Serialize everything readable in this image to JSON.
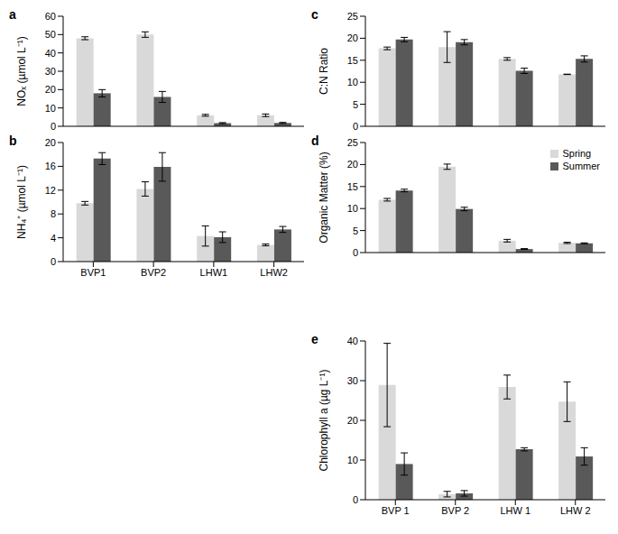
{
  "chart_data": [
    {
      "type": "bar",
      "title": "a",
      "y_label": "NOₓ (µmol L⁻¹)",
      "categories": [
        null,
        null,
        null,
        null
      ],
      "tick_labels": "y",
      "series": [
        {
          "name": "Spring",
          "color": "#d9d9d9",
          "values": [
            48,
            50,
            6,
            6
          ],
          "errors": [
            0.8,
            1.5,
            0.5,
            0.7
          ]
        },
        {
          "name": "Summer",
          "color": "#595959",
          "values": [
            18,
            16,
            1.7,
            1.8
          ],
          "errors": [
            2,
            3,
            0.3,
            0.3
          ]
        }
      ],
      "ylim": [
        0,
        60
      ],
      "yticks": [
        0,
        10,
        20,
        30,
        40,
        50,
        60
      ]
    },
    {
      "type": "bar",
      "title": "b",
      "y_label": "NH₄⁺ (µmol L⁻¹)",
      "categories": [
        "BVP1",
        "BVP2",
        "LHW1",
        "LHW2"
      ],
      "series": [
        {
          "name": "Spring",
          "color": "#d9d9d9",
          "values": [
            9.8,
            12.2,
            4.3,
            2.8
          ],
          "errors": [
            0.3,
            1.2,
            1.7,
            0.15
          ]
        },
        {
          "name": "Summer",
          "color": "#595959",
          "values": [
            17.3,
            15.9,
            4.1,
            5.4
          ],
          "errors": [
            1,
            2.4,
            0.9,
            0.5
          ]
        }
      ],
      "ylim": [
        0,
        20
      ],
      "yticks": [
        0,
        4,
        8,
        12,
        16,
        20
      ]
    },
    {
      "type": "bar",
      "title": "c",
      "y_label": "C:N Ratio",
      "categories": [
        null,
        null,
        null,
        null
      ],
      "tick_labels": "y",
      "series": [
        {
          "name": "Spring",
          "color": "#d9d9d9",
          "values": [
            17.7,
            18,
            15.3,
            11.8
          ],
          "errors": [
            0.3,
            3.5,
            0.3,
            0.05
          ]
        },
        {
          "name": "Summer",
          "color": "#595959",
          "values": [
            19.7,
            19.1,
            12.6,
            15.3
          ],
          "errors": [
            0.5,
            0.6,
            0.6,
            0.7
          ]
        }
      ],
      "ylim": [
        0,
        25
      ],
      "yticks": [
        0,
        5,
        10,
        15,
        20,
        25
      ]
    },
    {
      "type": "bar",
      "title": "d",
      "y_label": "Organic Matter (%)",
      "categories": [
        null,
        null,
        null,
        null
      ],
      "tick_labels": "y",
      "legend": "top-right",
      "series": [
        {
          "name": "Spring",
          "color": "#d9d9d9",
          "values": [
            12,
            19.5,
            2.7,
            2.2
          ],
          "errors": [
            0.3,
            0.6,
            0.3,
            0.15
          ]
        },
        {
          "name": "Summer",
          "color": "#595959",
          "values": [
            14.1,
            9.9,
            0.8,
            2.1
          ],
          "errors": [
            0.3,
            0.4,
            0.1,
            0.1
          ]
        }
      ],
      "ylim": [
        0,
        25
      ],
      "yticks": [
        0,
        5,
        10,
        15,
        20,
        25
      ]
    },
    {
      "type": "bar",
      "title": "e",
      "y_label": "Chlorophyll a (µg L⁻¹)",
      "categories": [
        "BVP 1",
        "BVP 2",
        "LHW 1",
        "LHW 2"
      ],
      "series": [
        {
          "name": "Spring",
          "color": "#d9d9d9",
          "values": [
            28.9,
            1.4,
            28.4,
            24.7
          ],
          "errors": [
            10.5,
            0.7,
            3,
            5
          ]
        },
        {
          "name": "Summer",
          "color": "#595959",
          "values": [
            9,
            1.6,
            12.7,
            10.9
          ],
          "errors": [
            2.8,
            0.7,
            0.4,
            2.2
          ]
        }
      ],
      "ylim": [
        0,
        40
      ],
      "yticks": [
        0,
        10,
        20,
        30,
        40
      ]
    }
  ]
}
